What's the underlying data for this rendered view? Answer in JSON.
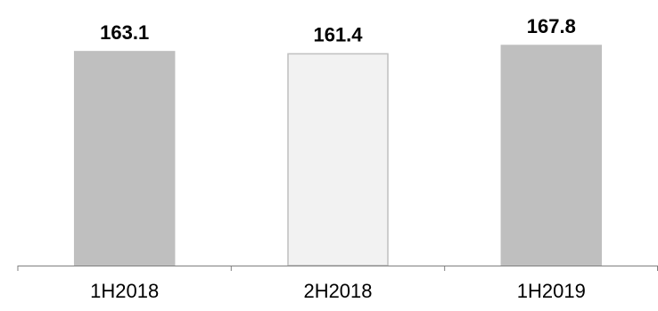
{
  "chart_data": {
    "type": "bar",
    "categories": [
      "1H2018",
      "2H2018",
      "1H2019"
    ],
    "values": [
      163.1,
      161.4,
      167.8
    ],
    "value_labels": [
      "163.1",
      "161.4",
      "167.8"
    ],
    "title": "",
    "xlabel": "",
    "ylabel": "",
    "y_axis_visible": false,
    "grid": false,
    "legend": "none",
    "bar_fill_colors": [
      "#bfbfbf",
      "#f2f2f2",
      "#bfbfbf"
    ],
    "bar_stroke_colors": [
      "#bfbfbf",
      "#bfbfbf",
      "#bfbfbf"
    ],
    "axis_color": "#7f7f7f"
  }
}
